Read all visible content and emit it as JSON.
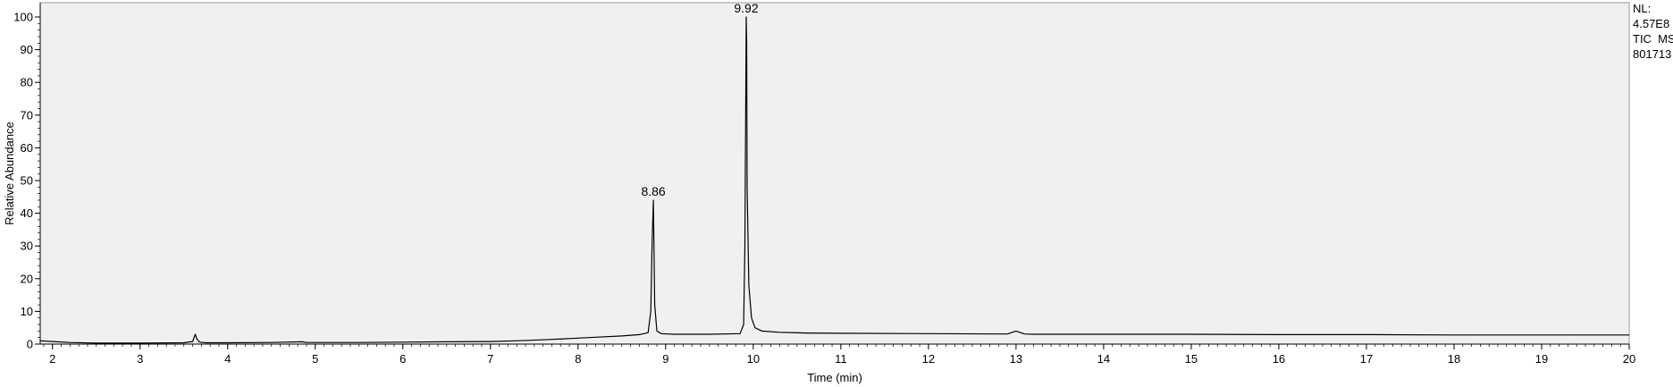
{
  "chart_data": {
    "type": "line",
    "title": "",
    "xlabel": "Time (min)",
    "ylabel": "Relative Abundance",
    "xlim": [
      1.86,
      20
    ],
    "ylim": [
      0,
      100
    ],
    "x_ticks": [
      2,
      3,
      4,
      5,
      6,
      7,
      8,
      9,
      10,
      11,
      12,
      13,
      14,
      15,
      16,
      17,
      18,
      19,
      20
    ],
    "y_ticks": [
      0,
      10,
      20,
      30,
      40,
      50,
      60,
      70,
      80,
      90,
      100
    ],
    "grid": false,
    "line_color": "#000000",
    "plot_background": "#f0f0f0",
    "info": {
      "nl_label": "NL:",
      "nl_value": "4.57E8",
      "scan_type": "TIC  MS",
      "file_name": "801713"
    },
    "peak_labels": [
      {
        "x": 8.86,
        "y": 44,
        "text": "8.86"
      },
      {
        "x": 9.92,
        "y": 100,
        "text": "9.92"
      }
    ],
    "series": [
      {
        "x": [
          1.86,
          2.0,
          2.2,
          2.5,
          3.0,
          3.5,
          3.6,
          3.63,
          3.65,
          3.68,
          3.75,
          4.0,
          4.5,
          4.85,
          4.9,
          5.0,
          5.5,
          6.0,
          6.5,
          7.0,
          7.3,
          7.6,
          7.9,
          8.2,
          8.5,
          8.7,
          8.8,
          8.83,
          8.845,
          8.86,
          8.875,
          8.9,
          8.95,
          9.1,
          9.5,
          9.85,
          9.89,
          9.905,
          9.92,
          9.925,
          9.93,
          9.95,
          9.98,
          10.02,
          10.1,
          10.3,
          10.6,
          11.0,
          12.0,
          12.9,
          13.0,
          13.05,
          13.1,
          13.2,
          14.0,
          15.0,
          16.0,
          17.0,
          18.0,
          19.0,
          20.0
        ],
        "y": [
          1.0,
          0.8,
          0.5,
          0.3,
          0.3,
          0.4,
          0.8,
          3.0,
          1.5,
          0.6,
          0.4,
          0.4,
          0.5,
          0.7,
          0.5,
          0.5,
          0.5,
          0.6,
          0.7,
          0.8,
          1.0,
          1.3,
          1.7,
          2.1,
          2.5,
          2.9,
          3.5,
          10.0,
          30.0,
          44.0,
          12.0,
          4.0,
          3.2,
          3.0,
          3.0,
          3.2,
          6.0,
          30.0,
          100.0,
          92.0,
          48.0,
          18.0,
          8.0,
          5.0,
          4.0,
          3.6,
          3.4,
          3.3,
          3.2,
          3.1,
          4.0,
          3.5,
          3.1,
          3.0,
          3.0,
          3.0,
          2.9,
          2.9,
          2.8,
          2.8,
          2.8
        ]
      }
    ]
  }
}
